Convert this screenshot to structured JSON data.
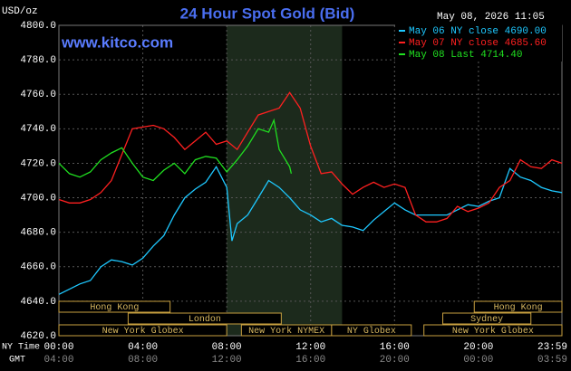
{
  "chart_data": {
    "type": "line",
    "title": "24 Hour Spot Gold (Bid)",
    "timestamp": "May 08, 2026 11:05",
    "unit": "USD/oz",
    "site": "www.kitco.com",
    "x_row_label": "NY Time",
    "x2_row_label": "GMT",
    "xlim": [
      0,
      23.98
    ],
    "xticks": [
      {
        "value": 0,
        "label": "00:00"
      },
      {
        "value": 4,
        "label": "04:00"
      },
      {
        "value": 8,
        "label": "08:00"
      },
      {
        "value": 12,
        "label": "12:00"
      },
      {
        "value": 16,
        "label": "16:00"
      },
      {
        "value": 20,
        "label": "20:00"
      },
      {
        "value": 23.98,
        "label": "23:59"
      }
    ],
    "x2ticklabels": [
      "04:00",
      "08:00",
      "12:00",
      "16:00",
      "20:00",
      "00:00",
      "03:59"
    ],
    "ylim": [
      4620,
      4800
    ],
    "yticks": [
      {
        "value": 4620,
        "label": "4620.0"
      },
      {
        "value": 4640,
        "label": "4640.0"
      },
      {
        "value": 4660,
        "label": "4660.0"
      },
      {
        "value": 4680,
        "label": "4680.0"
      },
      {
        "value": 4700,
        "label": "4700.0"
      },
      {
        "value": 4720,
        "label": "4720.0"
      },
      {
        "value": 4740,
        "label": "4740.0"
      },
      {
        "value": 4760,
        "label": "4760.0"
      },
      {
        "value": 4780,
        "label": "4780.0"
      },
      {
        "value": 4800,
        "label": "4800.0"
      }
    ],
    "grid": true,
    "shaded_span": [
      8,
      13.5
    ],
    "sessions": [
      [
        {
          "label": "Hong Kong",
          "start": 0,
          "end": 5.3
        },
        {
          "label": "Hong Kong",
          "start": 19.8,
          "end": 23.98
        }
      ],
      [
        {
          "label": "London",
          "start": 3.3,
          "end": 10.6
        },
        {
          "label": "Sydney",
          "start": 18.3,
          "end": 22.5
        }
      ],
      [
        {
          "label": "New York Globex",
          "start": 0,
          "end": 8
        },
        {
          "label": "New York NYMEX",
          "start": 8.7,
          "end": 13
        },
        {
          "label": "NY Globex",
          "start": 13,
          "end": 16.8
        },
        {
          "label": "New York Globex",
          "start": 17.4,
          "end": 23.98
        }
      ]
    ],
    "series": [
      {
        "name": "May 06 NY close 4690.00",
        "color": "#1ec8ff",
        "x": [
          0,
          0.5,
          1,
          1.5,
          2,
          2.5,
          3,
          3.5,
          4,
          4.5,
          5,
          5.5,
          6,
          6.5,
          7,
          7.5,
          8,
          8.25,
          8.5,
          9,
          9.5,
          10,
          10.5,
          11,
          11.5,
          12,
          12.5,
          13,
          13.5,
          14,
          14.5,
          15,
          15.5,
          16,
          16.5,
          17,
          17.5,
          18,
          18.5,
          19,
          19.5,
          20,
          20.5,
          21,
          21.5,
          22,
          22.5,
          23,
          23.5,
          23.98
        ],
        "values": [
          4644,
          4647,
          4650,
          4652,
          4660,
          4664,
          4663,
          4661,
          4665,
          4672,
          4678,
          4690,
          4700,
          4705,
          4709,
          4718,
          4706,
          4675,
          4685,
          4690,
          4700,
          4710,
          4706,
          4700,
          4693,
          4690,
          4686,
          4688,
          4684,
          4683,
          4681,
          4687,
          4692,
          4697,
          4693,
          4690,
          4690,
          4690,
          4690,
          4693,
          4696,
          4695,
          4698,
          4700,
          4717,
          4712,
          4710,
          4706,
          4704,
          4703
        ]
      },
      {
        "name": "May 07 NY close 4685.60",
        "color": "#ff2020",
        "x": [
          0,
          0.5,
          1,
          1.5,
          2,
          2.5,
          3,
          3.5,
          4,
          4.5,
          5,
          5.5,
          6,
          6.5,
          7,
          7.5,
          8,
          8.5,
          9,
          9.5,
          10,
          10.5,
          11,
          11.5,
          12,
          12.5,
          13,
          13.5,
          14,
          14.5,
          15,
          15.5,
          16,
          16.5,
          17,
          17.5,
          18,
          18.5,
          19,
          19.5,
          20,
          20.5,
          21,
          21.5,
          22,
          22.5,
          23,
          23.5,
          23.98
        ],
        "values": [
          4699,
          4697,
          4697,
          4699,
          4703,
          4710,
          4725,
          4740,
          4741,
          4742,
          4740,
          4735,
          4728,
          4733,
          4738,
          4731,
          4733,
          4728,
          4738,
          4748,
          4750,
          4752,
          4761,
          4752,
          4730,
          4714,
          4715,
          4708,
          4702,
          4706,
          4709,
          4706,
          4708,
          4706,
          4690,
          4686,
          4686,
          4688,
          4695,
          4692,
          4694,
          4697,
          4706,
          4710,
          4722,
          4718,
          4717,
          4722,
          4720
        ]
      },
      {
        "name": "May 08 Last 4714.40",
        "color": "#20e020",
        "x": [
          0,
          0.5,
          1,
          1.5,
          2,
          2.5,
          3,
          3.5,
          4,
          4.5,
          5,
          5.5,
          6,
          6.5,
          7,
          7.5,
          8,
          8.5,
          9,
          9.5,
          10,
          10.25,
          10.5,
          11,
          11.08
        ],
        "values": [
          4720,
          4714,
          4712,
          4715,
          4722,
          4726,
          4729,
          4720,
          4712,
          4710,
          4716,
          4720,
          4714,
          4722,
          4724,
          4723,
          4715,
          4722,
          4730,
          4740,
          4738,
          4745,
          4728,
          4718,
          4714
        ]
      }
    ]
  }
}
